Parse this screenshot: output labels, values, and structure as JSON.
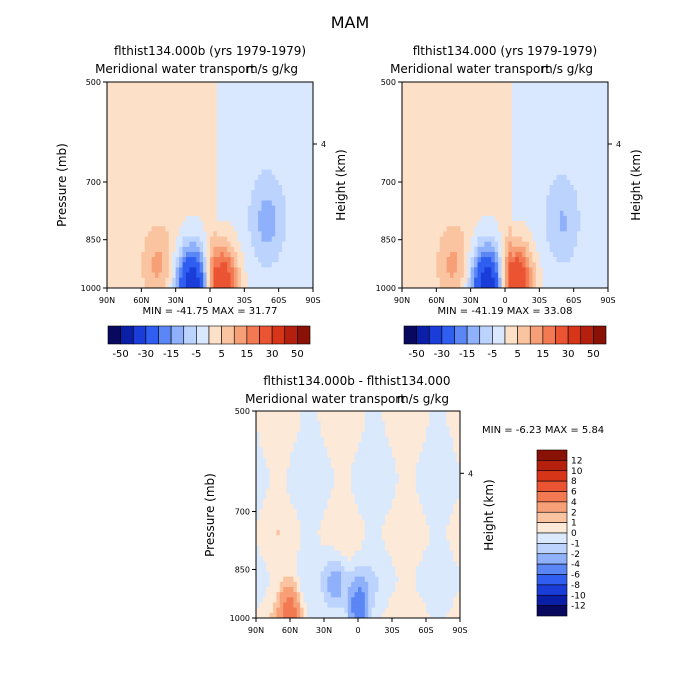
{
  "page_title": "MAM",
  "chart_data": [
    {
      "type": "heatmap",
      "title": "flthist134.000b (yrs 1979-1979)",
      "subtitle": "Meridional water transport",
      "units": "m/s g/kg",
      "ylabel": "Pressure (mb)",
      "ylabel_right": "Height (km)",
      "x_ticks": [
        "90N",
        "60N",
        "30N",
        "0",
        "30S",
        "60S",
        "90S"
      ],
      "y_ticks": [
        "500",
        "700",
        "850",
        "1000"
      ],
      "y_ticks_right": [
        "4"
      ],
      "min_max_text": "MIN = -41.75   MAX =  31.77",
      "colorbar_labels": [
        "-50",
        "-30",
        "-15",
        "-5",
        "5",
        "15",
        "30",
        "50"
      ],
      "colorbar_colors": [
        "#08085e",
        "#0b1ea8",
        "#1a3cd9",
        "#2f5ef0",
        "#5b86f5",
        "#8fb0fa",
        "#bcd4fd",
        "#d9e8fe",
        "#fde0c8",
        "#fbc4a0",
        "#f79f76",
        "#f27952",
        "#eb5432",
        "#d63518",
        "#b5200e",
        "#8a1106"
      ],
      "features": [
        {
          "lat": 15,
          "p": 980,
          "value": -40
        },
        {
          "lat": -10,
          "p": 970,
          "value": 30
        },
        {
          "lat": 45,
          "p": 920,
          "value": 10
        },
        {
          "lat": -50,
          "p": 800,
          "value": -10
        }
      ]
    },
    {
      "type": "heatmap",
      "title": "flthist134.000 (yrs 1979-1979)",
      "subtitle": "Meridional water transport",
      "units": "m/s g/kg",
      "ylabel": "",
      "ylabel_right": "Height (km)",
      "x_ticks": [
        "90N",
        "60N",
        "30N",
        "0",
        "30S",
        "60S",
        "90S"
      ],
      "y_ticks": [
        "500",
        "700",
        "850",
        "1000"
      ],
      "y_ticks_right": [
        "4"
      ],
      "min_max_text": "MIN = -41.19   MAX =  33.08",
      "colorbar_labels": [
        "-50",
        "-30",
        "-15",
        "-5",
        "5",
        "15",
        "30",
        "50"
      ],
      "colorbar_colors": [
        "#08085e",
        "#0b1ea8",
        "#1a3cd9",
        "#2f5ef0",
        "#5b86f5",
        "#8fb0fa",
        "#bcd4fd",
        "#d9e8fe",
        "#fde0c8",
        "#fbc4a0",
        "#f79f76",
        "#f27952",
        "#eb5432",
        "#d63518",
        "#b5200e",
        "#8a1106"
      ],
      "features": [
        {
          "lat": 15,
          "p": 980,
          "value": -40
        },
        {
          "lat": -10,
          "p": 970,
          "value": 32
        },
        {
          "lat": 45,
          "p": 920,
          "value": 10
        },
        {
          "lat": -50,
          "p": 800,
          "value": -8
        }
      ]
    },
    {
      "type": "heatmap",
      "title": "flthist134.000b - flthist134.000",
      "subtitle": "Meridional water transport",
      "units": "m/s g/kg",
      "ylabel": "Pressure (mb)",
      "ylabel_right": "Height (km)",
      "x_ticks": [
        "90N",
        "60N",
        "30N",
        "0",
        "30S",
        "60S",
        "90S"
      ],
      "y_ticks": [
        "500",
        "700",
        "850",
        "1000"
      ],
      "y_ticks_right": [
        "4"
      ],
      "min_max_text": "MIN =   -6.23   MAX =    5.84",
      "colorbar_labels": [
        "12",
        "10",
        "8",
        "6",
        "4",
        "2",
        "1",
        "0",
        "-1",
        "-2",
        "-4",
        "-6",
        "-8",
        "-10",
        "-12"
      ],
      "colorbar_colors": [
        "#8a1106",
        "#b5200e",
        "#d63518",
        "#eb5432",
        "#f27952",
        "#f79f76",
        "#fbc4a0",
        "#fde9d8",
        "#dbe9fd",
        "#bcd4fd",
        "#8fb0fa",
        "#5b86f5",
        "#2f5ef0",
        "#1a3cd9",
        "#0b1ea8",
        "#08085e"
      ],
      "features": [
        {
          "lat": 0,
          "p": 970,
          "value": -6
        },
        {
          "lat": 60,
          "p": 980,
          "value": 5
        },
        {
          "lat": 20,
          "p": 900,
          "value": -3
        }
      ]
    }
  ]
}
